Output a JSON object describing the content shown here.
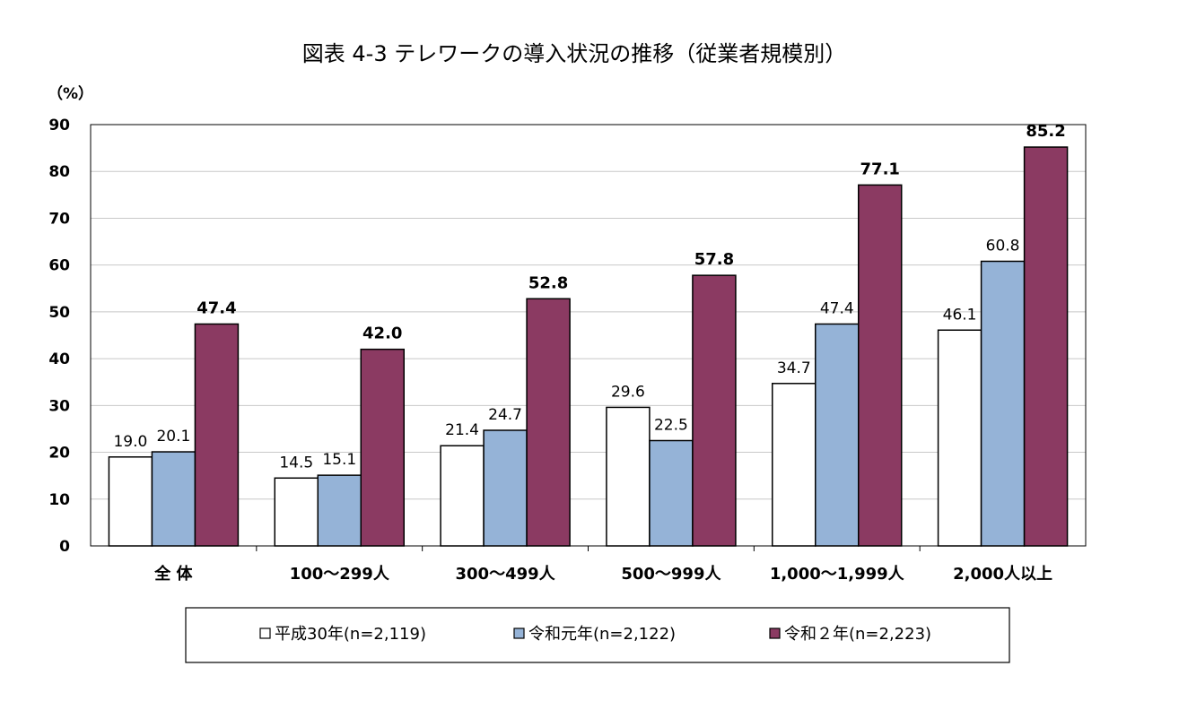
{
  "chart_data": {
    "type": "bar",
    "title": "図表 4-3 テレワークの導入状況の推移（従業者規模別）",
    "yunit": "（%）",
    "ylim": [
      0,
      90
    ],
    "yticks": [
      "0",
      "10",
      "20",
      "30",
      "40",
      "50",
      "60",
      "70",
      "80",
      "90"
    ],
    "grid": true,
    "legend_position": "bottom",
    "categories": [
      "全 体",
      "100～299人",
      "300～499人",
      "500～999人",
      "1,000～1,999人",
      "2,000人以上"
    ],
    "series": [
      {
        "name": "平成30年(n=2,119)",
        "color": "#ffffff",
        "label_bold": false,
        "values": [
          19.0,
          14.5,
          21.4,
          29.6,
          34.7,
          46.1
        ],
        "labels": [
          "19.0",
          "14.5",
          "21.4",
          "29.6",
          "34.7",
          "46.1"
        ]
      },
      {
        "name": "令和元年(n=2,122)",
        "color": "#95b3d7",
        "label_bold": false,
        "values": [
          20.1,
          15.1,
          24.7,
          22.5,
          47.4,
          60.8
        ],
        "labels": [
          "20.1",
          "15.1",
          "24.7",
          "22.5",
          "47.4",
          "60.8"
        ]
      },
      {
        "name": "令和２年(n=2,223)",
        "color": "#8b3a62",
        "label_bold": true,
        "values": [
          47.4,
          42.0,
          52.8,
          57.8,
          77.1,
          85.2
        ],
        "labels": [
          "47.4",
          "42.0",
          "52.8",
          "57.8",
          "77.1",
          "85.2"
        ]
      }
    ]
  }
}
